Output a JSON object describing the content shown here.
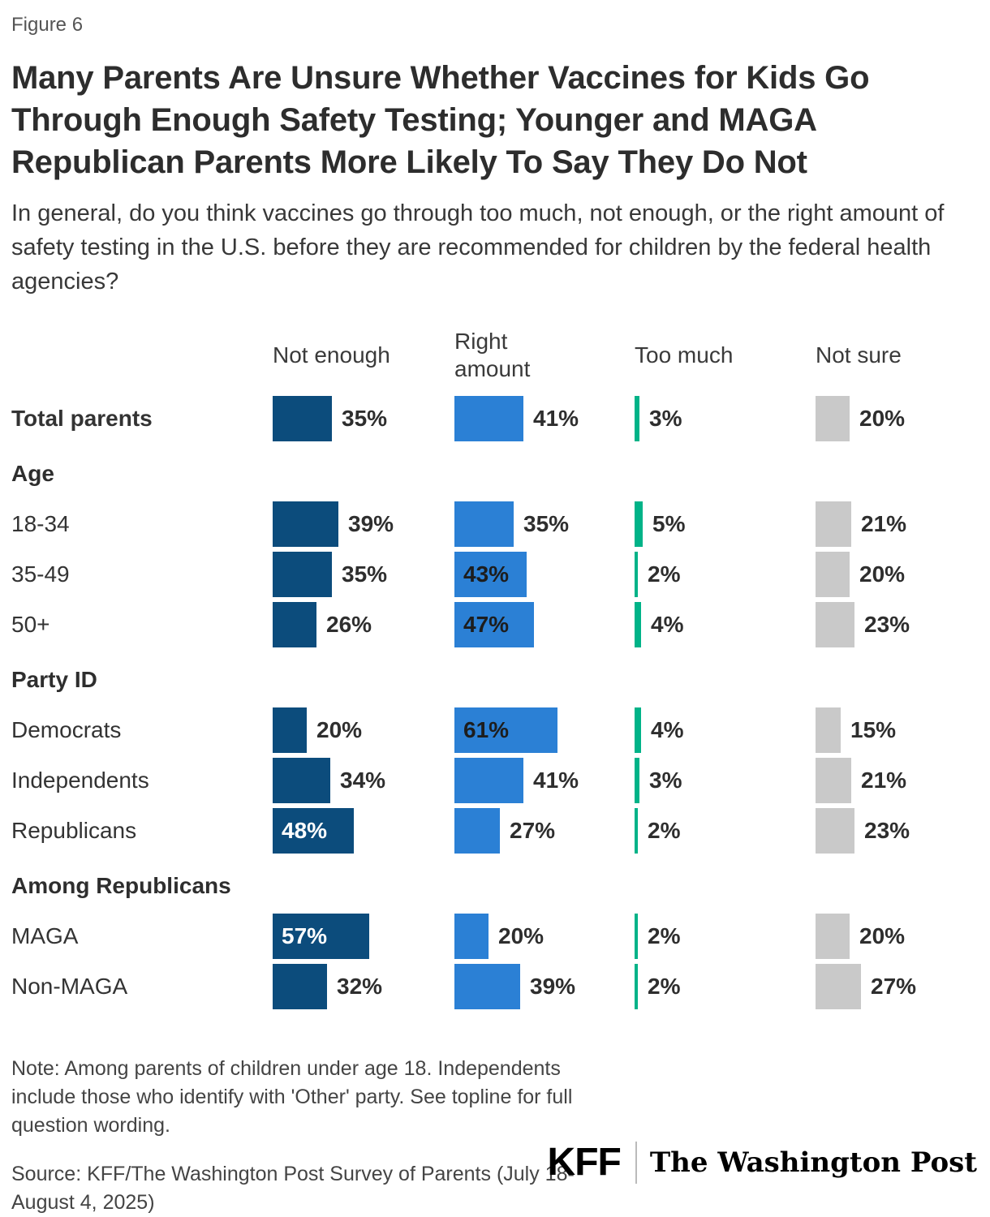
{
  "figure_label": "Figure 6",
  "title": "Many Parents Are Unsure Whether Vaccines for Kids Go Through Enough Safety Testing; Younger and MAGA Republican Parents More Likely To Say They Do Not",
  "subtitle": "In general, do you think vaccines go through too much, not enough, or the right amount of safety testing in the U.S. before they are recommended for children by the federal health agencies?",
  "chart_data": {
    "type": "bar",
    "orientation": "horizontal",
    "unit": "%",
    "value_range": [
      0,
      100
    ],
    "legend_position": "top-column-headers",
    "grid": false,
    "columns": [
      {
        "key": "not_enough",
        "label": "Not enough",
        "color": "#0c4c7c"
      },
      {
        "key": "right_amount",
        "label": "Right amount",
        "color": "#2b80d5"
      },
      {
        "key": "too_much",
        "label": "Too much",
        "color": "#00b388"
      },
      {
        "key": "not_sure",
        "label": "Not sure",
        "color": "#c9c9c9"
      }
    ],
    "rows": [
      {
        "type": "data",
        "label": "Total parents",
        "bold": true,
        "values": [
          35,
          41,
          3,
          20
        ]
      },
      {
        "type": "section",
        "label": "Age"
      },
      {
        "type": "data",
        "label": "18-34",
        "values": [
          39,
          35,
          5,
          21
        ]
      },
      {
        "type": "data",
        "label": "35-49",
        "values": [
          35,
          43,
          2,
          20
        ]
      },
      {
        "type": "data",
        "label": "50+",
        "values": [
          26,
          47,
          4,
          23
        ]
      },
      {
        "type": "section",
        "label": "Party ID"
      },
      {
        "type": "data",
        "label": "Democrats",
        "values": [
          20,
          61,
          4,
          15
        ]
      },
      {
        "type": "data",
        "label": "Independents",
        "values": [
          34,
          41,
          3,
          21
        ]
      },
      {
        "type": "data",
        "label": "Republicans",
        "values": [
          48,
          27,
          2,
          23
        ]
      },
      {
        "type": "section",
        "label": "Among Republicans"
      },
      {
        "type": "data",
        "label": "MAGA",
        "values": [
          57,
          20,
          2,
          20
        ]
      },
      {
        "type": "data",
        "label": "Non-MAGA",
        "values": [
          32,
          39,
          2,
          27
        ]
      }
    ]
  },
  "note": "Note: Among parents of children under age 18. Independents include those who identify with 'Other' party. See topline for full question wording.",
  "source": "Source: KFF/The Washington Post Survey of Parents (July 18-August 4, 2025)",
  "logos": {
    "kff": "KFF",
    "washington_post": "The Washington Post"
  }
}
